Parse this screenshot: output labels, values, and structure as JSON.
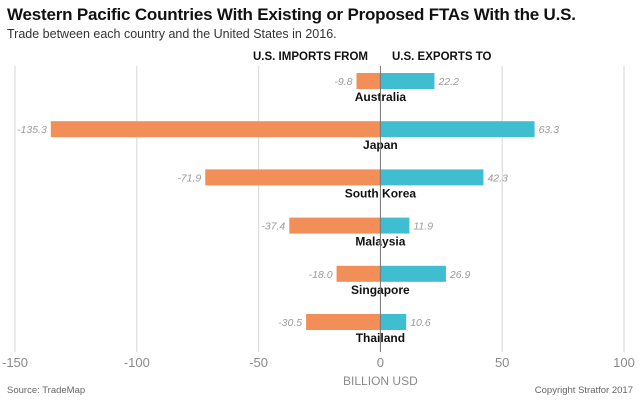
{
  "header": {
    "title": "Western Pacific Countries With Existing or Proposed FTAs With the U.S.",
    "subtitle": "Trade between each country and the United States in 2016."
  },
  "legend": {
    "imports_label": "U.S. IMPORTS FROM",
    "exports_label": "U.S. EXPORTS TO"
  },
  "footer": {
    "source": "Source: TradeMap",
    "copyright": "Copyright Stratfor 2017"
  },
  "colors": {
    "imports": "#f28f59",
    "exports": "#3fbdd1",
    "gridline": "#d6d6d6",
    "value_label": "#9a9a9a",
    "axis_text": "#8a8a8a"
  },
  "chart_data": {
    "type": "bar",
    "orientation": "horizontal-diverging",
    "title": "Western Pacific Countries With Existing or Proposed FTAs With the U.S.",
    "subtitle": "Trade between each country and the United States in 2016.",
    "xlabel": "BILLION USD",
    "xlim": [
      -150,
      100
    ],
    "xticks": [
      -150,
      -100,
      -50,
      0,
      50,
      100
    ],
    "grid": true,
    "categories": [
      "Australia",
      "Japan",
      "South Korea",
      "Malaysia",
      "Singapore",
      "Thailand"
    ],
    "series": [
      {
        "name": "U.S. IMPORTS FROM",
        "values": [
          -9.8,
          -135.3,
          -71.9,
          -37.4,
          -18.0,
          -30.5
        ],
        "labels": [
          "-9.8",
          "-135.3",
          "-71.9",
          "-37.4",
          "-18.0",
          "-30.5"
        ]
      },
      {
        "name": "U.S. EXPORTS TO",
        "values": [
          22.2,
          63.3,
          42.3,
          11.9,
          26.9,
          10.6
        ],
        "labels": [
          "22.2",
          "63.3",
          "42.3",
          "11.9",
          "26.9",
          "10.6"
        ]
      }
    ]
  }
}
